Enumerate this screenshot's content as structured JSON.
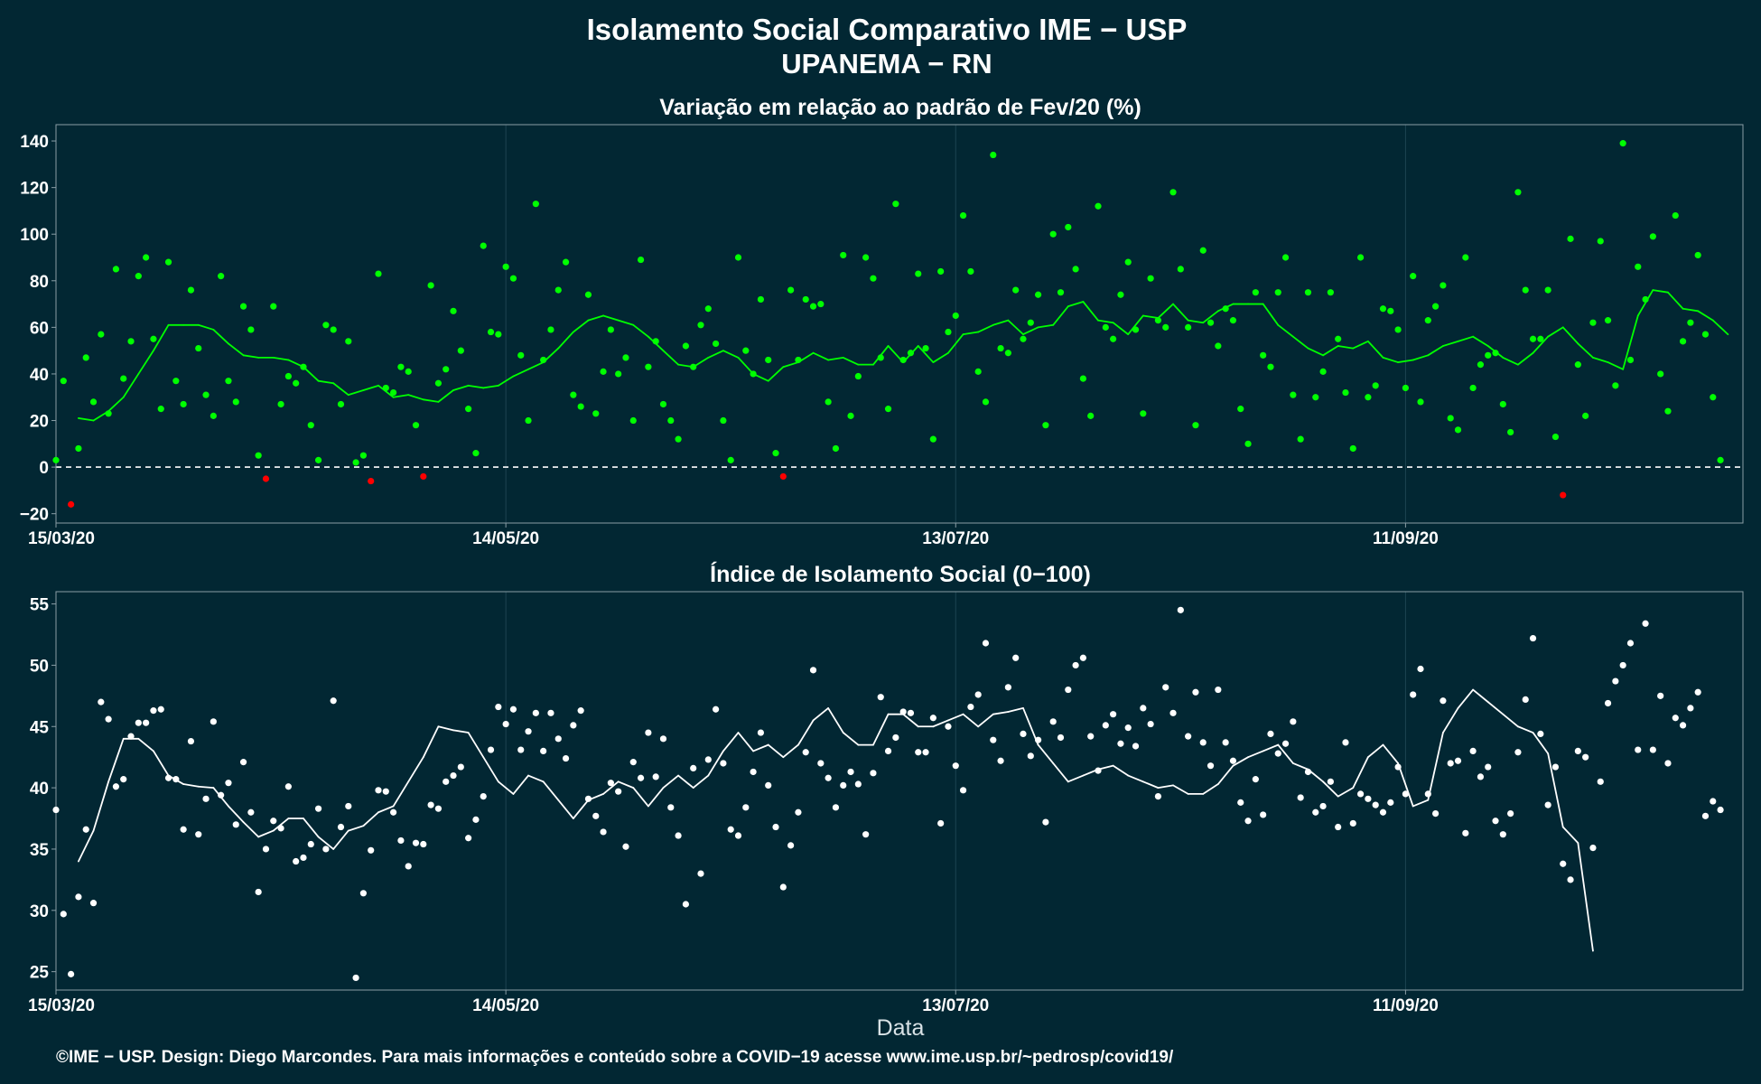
{
  "header": {
    "title_line1": "Isolamento Social Comparativo IME − USP",
    "title_line2": "UPANEMA − RN"
  },
  "footer": {
    "xlabel": "Data",
    "caption": "©IME − USP. Design: Diego Marcondes. Para mais informações e conteúdo sobre a COVID−19 acesse www.ime.usp.br/~pedrosp/covid19/"
  },
  "colors": {
    "background": "#022733",
    "positive": "#00ff00",
    "negative": "#ff0000",
    "index": "#ffffff",
    "grid": "#1e4452",
    "axis": "#8a9ea6"
  },
  "chart_data": [
    {
      "type": "scatter",
      "title": "Variação em relação ao padrão de Fev/20 (%)",
      "x_type": "date",
      "x_start": "2020-03-15",
      "x_end": "2020-10-26",
      "x_ticks": [
        "2020-03-15",
        "2020-05-14",
        "2020-07-13",
        "2020-09-11"
      ],
      "x_tick_labels": [
        "15/03/20",
        "14/05/20",
        "13/07/20",
        "11/09/20"
      ],
      "ylim": [
        -24,
        147
      ],
      "y_ticks": [
        -20,
        0,
        20,
        40,
        60,
        80,
        100,
        120,
        140
      ],
      "y_tick_labels": [
        "−20",
        "0",
        "20",
        "40",
        "60",
        "80",
        "100",
        "120",
        "140"
      ],
      "reference_line": 0,
      "color_rule": "green when value >= 0, red when value < 0",
      "grid": true,
      "series": [
        {
          "kind": "points",
          "x_step_days": 1,
          "values": [
            3,
            37,
            -16,
            8,
            47,
            28,
            57,
            23,
            85,
            38,
            54,
            82,
            90,
            55,
            25,
            88,
            37,
            27,
            76,
            51,
            31,
            22,
            82,
            37,
            28,
            69,
            59,
            5,
            -5,
            69,
            27,
            39,
            36,
            43,
            18,
            3,
            61,
            59,
            27,
            54,
            2,
            5,
            -6,
            83,
            34,
            32,
            43,
            41,
            18,
            -4,
            78,
            36,
            42,
            67,
            50,
            25,
            6,
            95,
            58,
            57,
            86,
            81,
            48,
            20,
            113,
            46,
            59,
            76,
            88,
            31,
            26,
            74,
            23,
            41,
            59,
            40,
            47,
            20,
            89,
            43,
            54,
            27,
            20,
            12,
            52,
            43,
            61,
            68,
            53,
            20,
            3,
            90,
            50,
            40,
            72,
            46,
            6,
            -4,
            76,
            46,
            72,
            69,
            70,
            28,
            8,
            91,
            22,
            39,
            90,
            81,
            47,
            25,
            113,
            46,
            49,
            83,
            51,
            12,
            84,
            58,
            65,
            108,
            84,
            41,
            28,
            134,
            51,
            49,
            76,
            55,
            62,
            74,
            18,
            100,
            75,
            103,
            85,
            38,
            22,
            112,
            60,
            55,
            74,
            88,
            59,
            23,
            81,
            63,
            60,
            118,
            85,
            60,
            18,
            93,
            62,
            52,
            68,
            63,
            25,
            10,
            75,
            48,
            43,
            75,
            90,
            31,
            12,
            75,
            30,
            41,
            75,
            55,
            32,
            8,
            90,
            30,
            35,
            68,
            67,
            59,
            34,
            82,
            28,
            63,
            69,
            78,
            21,
            16,
            90,
            34,
            44,
            48,
            49,
            27,
            15,
            118,
            76,
            55,
            55,
            76,
            13,
            -12,
            98,
            44,
            22,
            62,
            97,
            63,
            35,
            139,
            46,
            86,
            72,
            99,
            40,
            24,
            108,
            54,
            62,
            91,
            57,
            30,
            3
          ]
        },
        {
          "kind": "line",
          "label": "moving average",
          "x_offset_days": 3,
          "x_step_days": 2,
          "values": [
            21,
            20,
            24,
            30,
            40,
            50,
            61,
            61,
            61,
            59,
            53,
            48,
            47,
            47,
            46,
            43,
            37,
            36,
            31,
            33,
            35,
            30,
            31,
            29,
            28,
            33,
            35,
            34,
            35,
            39,
            42,
            45,
            51,
            58,
            63,
            65,
            63,
            61,
            56,
            50,
            44,
            43,
            47,
            50,
            47,
            40,
            37,
            43,
            45,
            49,
            46,
            47,
            44,
            44,
            52,
            45,
            52,
            45,
            49,
            57,
            58,
            61,
            63,
            57,
            60,
            61,
            69,
            71,
            63,
            62,
            57,
            65,
            64,
            70,
            63,
            62,
            67,
            70,
            70,
            70,
            61,
            56,
            51,
            48,
            52,
            51,
            54,
            47,
            45,
            46,
            48,
            52,
            54,
            56,
            52,
            47,
            44,
            49,
            56,
            60,
            53,
            47,
            45,
            42,
            65,
            76,
            75,
            68,
            67,
            63,
            57
          ]
        }
      ]
    },
    {
      "type": "scatter",
      "title": "Índice de Isolamento Social (0−100)",
      "x_type": "date",
      "x_start": "2020-03-15",
      "x_end": "2020-10-26",
      "x_ticks": [
        "2020-03-15",
        "2020-05-14",
        "2020-07-13",
        "2020-09-11"
      ],
      "x_tick_labels": [
        "15/03/20",
        "14/05/20",
        "13/07/20",
        "11/09/20"
      ],
      "xlabel": "Data",
      "ylim": [
        23.5,
        56
      ],
      "y_ticks": [
        25,
        30,
        35,
        40,
        45,
        50,
        55
      ],
      "y_tick_labels": [
        "25",
        "30",
        "35",
        "40",
        "45",
        "50",
        "55"
      ],
      "grid": true,
      "series": [
        {
          "kind": "points",
          "x_step_days": 1,
          "values": [
            38.2,
            29.7,
            24.8,
            31.1,
            36.6,
            30.6,
            47.0,
            45.6,
            40.1,
            40.7,
            44.2,
            45.3,
            45.3,
            46.3,
            46.4,
            40.8,
            40.7,
            36.6,
            43.8,
            36.2,
            39.1,
            45.4,
            39.4,
            40.4,
            37.0,
            42.1,
            38.0,
            31.5,
            35.0,
            37.3,
            36.7,
            40.1,
            34.0,
            34.3,
            35.4,
            38.3,
            35.0,
            47.1,
            36.8,
            38.5,
            24.5,
            31.4,
            34.9,
            39.8,
            39.7,
            38.0,
            35.7,
            33.6,
            35.5,
            35.4,
            38.6,
            38.3,
            40.5,
            41.0,
            41.7,
            35.9,
            37.4,
            39.3,
            43.1,
            46.6,
            45.2,
            46.4,
            43.1,
            44.6,
            46.1,
            43.0,
            46.1,
            44.0,
            42.4,
            45.1,
            46.3,
            39.1,
            37.7,
            36.4,
            40.4,
            39.7,
            35.2,
            42.1,
            40.8,
            44.5,
            40.9,
            44.0,
            38.4,
            36.1,
            30.5,
            41.6,
            33.0,
            42.3,
            46.4,
            42.0,
            36.6,
            36.1,
            38.4,
            41.3,
            44.5,
            40.2,
            36.8,
            31.9,
            35.3,
            38.0,
            42.9,
            49.6,
            42.0,
            40.8,
            38.4,
            40.2,
            41.3,
            40.3,
            36.2,
            41.2,
            47.4,
            43.0,
            44.1,
            46.2,
            46.1,
            42.9,
            42.9,
            45.7,
            37.1,
            45.0,
            41.8,
            39.8,
            46.6,
            47.6,
            51.8,
            43.9,
            42.2,
            48.2,
            50.6,
            44.4,
            42.6,
            43.9,
            37.2,
            45.4,
            44.1,
            48.0,
            50.0,
            50.6,
            44.2,
            41.4,
            45.1,
            46.0,
            43.6,
            44.9,
            43.4,
            46.5,
            45.2,
            39.3,
            48.2,
            46.1,
            54.5,
            44.2,
            47.8,
            43.7,
            41.8,
            48.0,
            43.7,
            42.2,
            38.8,
            37.3,
            40.7,
            37.8,
            44.4,
            42.8,
            43.6,
            45.4,
            39.2,
            41.3,
            38.0,
            38.5,
            40.5,
            36.8,
            43.7,
            37.1,
            39.5,
            39.1,
            38.6,
            38.0,
            38.8,
            41.7,
            39.5,
            47.6,
            49.7,
            39.5,
            37.9,
            47.1,
            42.0,
            42.2,
            36.3,
            43.0,
            40.9,
            41.7,
            37.3,
            36.2,
            37.9,
            42.9,
            47.2,
            52.2,
            44.4,
            38.6,
            41.7,
            33.8,
            32.5,
            43.0,
            42.5,
            35.1,
            40.5,
            46.9,
            48.7,
            50.0,
            51.8,
            43.1,
            53.4,
            43.1,
            47.5,
            42.0,
            45.7,
            45.1,
            46.5,
            47.8,
            37.7,
            38.9,
            38.2
          ]
        },
        {
          "kind": "line",
          "label": "moving average",
          "x_offset_days": 3,
          "x_step_days": 2,
          "values": [
            34.0,
            36.5,
            40.5,
            44.0,
            44.0,
            43.0,
            41.0,
            40.3,
            40.1,
            40.0,
            38.5,
            37.2,
            36.0,
            36.5,
            37.5,
            37.5,
            36.0,
            35.0,
            36.5,
            36.9,
            38.0,
            38.5,
            40.5,
            42.5,
            45.0,
            44.7,
            44.5,
            42.5,
            40.5,
            39.5,
            41.0,
            40.5,
            39.0,
            37.5,
            39.0,
            39.5,
            40.5,
            40.0,
            38.5,
            40.0,
            41.0,
            40.0,
            41.0,
            43.0,
            44.5,
            43.0,
            43.5,
            42.5,
            43.5,
            45.5,
            46.5,
            44.5,
            43.5,
            43.5,
            46.0,
            46.0,
            45.0,
            45.0,
            45.5,
            46.0,
            45.0,
            46.0,
            46.2,
            46.5,
            43.5,
            42.0,
            40.5,
            41.0,
            41.5,
            41.8,
            41.0,
            40.5,
            40.0,
            40.2,
            39.5,
            39.5,
            40.3,
            41.8,
            42.5,
            43.0,
            43.5,
            42.0,
            41.5,
            40.5,
            39.3,
            40.0,
            42.5,
            43.5,
            42.0,
            38.5,
            39.0,
            44.5,
            46.5,
            48.0,
            47.0,
            46.0,
            45.0,
            44.5,
            42.8,
            36.8,
            35.5,
            26.7
          ]
        }
      ]
    }
  ]
}
